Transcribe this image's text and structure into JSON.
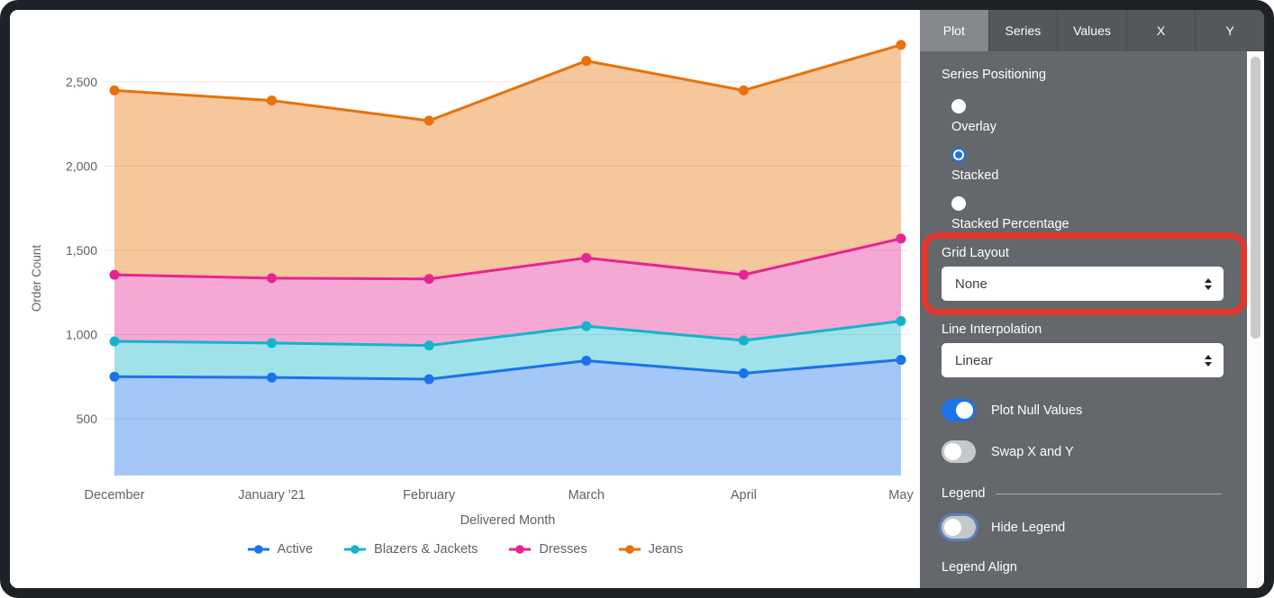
{
  "chart_data": {
    "type": "area",
    "stacking": "stacked",
    "title": "",
    "xlabel": "Delivered Month",
    "ylabel": "Order Count",
    "x": [
      "December",
      "January '21",
      "February",
      "March",
      "April",
      "May"
    ],
    "yticks": [
      500,
      1000,
      1500,
      2000,
      2500
    ],
    "y_bottom_value": 165,
    "grid": "horizontal",
    "legend_position": "bottom",
    "fill_opacity": 0.4,
    "series": [
      {
        "name": "Active",
        "color": "#1a73e8",
        "values": [
          750,
          745,
          735,
          845,
          770,
          850
        ]
      },
      {
        "name": "Blazers & Jackets",
        "color": "#12b5cb",
        "values": [
          210,
          205,
          200,
          205,
          195,
          230
        ]
      },
      {
        "name": "Dresses",
        "color": "#e52592",
        "values": [
          395,
          385,
          395,
          405,
          390,
          490
        ]
      },
      {
        "name": "Jeans",
        "color": "#e8710a",
        "values": [
          1095,
          1055,
          940,
          1170,
          1095,
          1150
        ]
      }
    ],
    "stacked_tops_as_read": {
      "Active": [
        750,
        745,
        735,
        845,
        770,
        850
      ],
      "Blazers & Jackets": [
        960,
        950,
        935,
        1050,
        965,
        1080
      ],
      "Dresses": [
        1355,
        1335,
        1330,
        1455,
        1355,
        1570
      ],
      "Jeans": [
        2450,
        2390,
        2270,
        2625,
        2450,
        2720
      ]
    }
  },
  "panel": {
    "tabs": [
      {
        "label": "Plot",
        "active": true
      },
      {
        "label": "Series",
        "active": false
      },
      {
        "label": "Values",
        "active": false
      },
      {
        "label": "X",
        "active": false
      },
      {
        "label": "Y",
        "active": false
      }
    ],
    "sections": {
      "series_positioning": {
        "label": "Series Positioning",
        "options": [
          {
            "label": "Overlay",
            "selected": false
          },
          {
            "label": "Stacked",
            "selected": true
          },
          {
            "label": "Stacked Percentage",
            "selected": false
          }
        ]
      },
      "grid_layout": {
        "label": "Grid Layout",
        "value": "None"
      },
      "line_interpolation": {
        "label": "Line Interpolation",
        "value": "Linear"
      },
      "plot_null_values": {
        "label": "Plot Null Values",
        "on": true
      },
      "swap_x_y": {
        "label": "Swap X and Y",
        "on": false
      },
      "legend": {
        "label": "Legend"
      },
      "hide_legend": {
        "label": "Hide Legend",
        "on": false
      },
      "legend_align": {
        "label": "Legend Align"
      }
    }
  },
  "annotation": {
    "type": "highlight-box",
    "around": "Grid Layout dropdown",
    "color": "#e2372b"
  },
  "colors": {
    "accent_blue": "#1a73e8",
    "panel_bg": "#64676c",
    "tab_bar_bg": "#54575c",
    "active_tab_bg": "#85888d",
    "grid_line": "#e9e9e9",
    "axis_text": "#5f6368",
    "frame": "#1e2226"
  }
}
